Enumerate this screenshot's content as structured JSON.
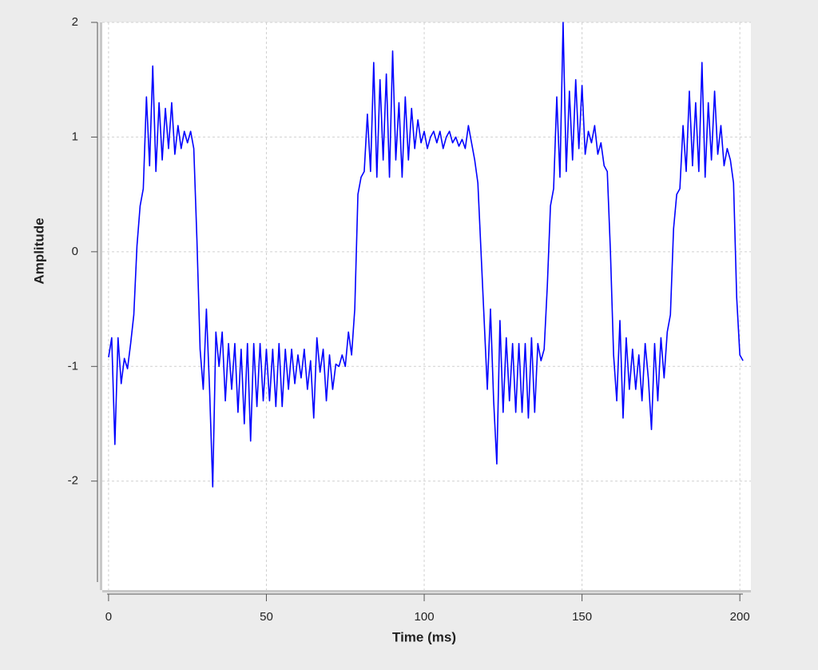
{
  "chart_data": {
    "type": "line",
    "xlabel": "Time (ms)",
    "ylabel": "Amplitude",
    "x": [
      0,
      1,
      2,
      3,
      4,
      5,
      6,
      7,
      8,
      9,
      10,
      11,
      12,
      13,
      14,
      15,
      16,
      17,
      18,
      19,
      20,
      21,
      22,
      23,
      24,
      25,
      26,
      27,
      28,
      29,
      30,
      31,
      32,
      33,
      34,
      35,
      36,
      37,
      38,
      39,
      40,
      41,
      42,
      43,
      44,
      45,
      46,
      47,
      48,
      49,
      50,
      51,
      52,
      53,
      54,
      55,
      56,
      57,
      58,
      59,
      60,
      61,
      62,
      63,
      64,
      65,
      66,
      67,
      68,
      69,
      70,
      71,
      72,
      73,
      74,
      75,
      76,
      77,
      78,
      79,
      80,
      81,
      82,
      83,
      84,
      85,
      86,
      87,
      88,
      89,
      90,
      91,
      92,
      93,
      94,
      95,
      96,
      97,
      98,
      99,
      100,
      101,
      102,
      103,
      104,
      105,
      106,
      107,
      108,
      109,
      110,
      111,
      112,
      113,
      114,
      115,
      116,
      117,
      118,
      119,
      120,
      121,
      122,
      123,
      124,
      125,
      126,
      127,
      128,
      129,
      130,
      131,
      132,
      133,
      134,
      135,
      136,
      137,
      138,
      139,
      140,
      141,
      142,
      143,
      144,
      145,
      146,
      147,
      148,
      149,
      150,
      151,
      152,
      153,
      154,
      155,
      156,
      157,
      158,
      159,
      160,
      161,
      162,
      163,
      164,
      165,
      166,
      167,
      168,
      169,
      170,
      171,
      172,
      173,
      174,
      175,
      176,
      177,
      178,
      179,
      180,
      181,
      182,
      183,
      184,
      185,
      186,
      187,
      188,
      189,
      190,
      191,
      192,
      193,
      194,
      195,
      196,
      197,
      198,
      199,
      200,
      201
    ],
    "series": [
      {
        "color": "#0000ff",
        "values": [
          -0.92,
          -0.75,
          -1.68,
          -0.75,
          -1.15,
          -0.93,
          -1.02,
          -0.8,
          -0.55,
          0.05,
          0.4,
          0.55,
          1.35,
          0.75,
          1.62,
          0.7,
          1.3,
          0.8,
          1.25,
          0.9,
          1.3,
          0.85,
          1.1,
          0.9,
          1.05,
          0.95,
          1.05,
          0.9,
          0.1,
          -0.85,
          -1.2,
          -0.5,
          -1.2,
          -2.05,
          -0.7,
          -1.0,
          -0.7,
          -1.3,
          -0.8,
          -1.2,
          -0.8,
          -1.4,
          -0.85,
          -1.5,
          -0.8,
          -1.65,
          -0.8,
          -1.35,
          -0.8,
          -1.3,
          -0.85,
          -1.3,
          -0.85,
          -1.35,
          -0.8,
          -1.35,
          -0.85,
          -1.2,
          -0.85,
          -1.15,
          -0.9,
          -1.1,
          -0.85,
          -1.2,
          -0.95,
          -1.45,
          -0.75,
          -1.05,
          -0.85,
          -1.3,
          -0.9,
          -1.2,
          -0.98,
          -1.0,
          -0.9,
          -1.0,
          -0.7,
          -0.9,
          -0.5,
          0.5,
          0.65,
          0.7,
          1.2,
          0.7,
          1.65,
          0.65,
          1.5,
          0.8,
          1.55,
          0.65,
          1.75,
          0.8,
          1.3,
          0.65,
          1.35,
          0.8,
          1.25,
          0.9,
          1.15,
          0.95,
          1.05,
          0.9,
          1.0,
          1.05,
          0.95,
          1.05,
          0.9,
          1.0,
          1.05,
          0.95,
          1.0,
          0.92,
          0.98,
          0.9,
          1.1,
          0.95,
          0.8,
          0.6,
          0.0,
          -0.6,
          -1.2,
          -0.5,
          -1.3,
          -1.85,
          -0.6,
          -1.4,
          -0.75,
          -1.3,
          -0.8,
          -1.4,
          -0.8,
          -1.4,
          -0.8,
          -1.45,
          -0.75,
          -1.4,
          -0.8,
          -0.95,
          -0.85,
          -0.3,
          0.4,
          0.55,
          1.35,
          0.65,
          2.0,
          0.7,
          1.4,
          0.8,
          1.5,
          0.9,
          1.45,
          0.85,
          1.05,
          0.95,
          1.1,
          0.85,
          0.95,
          0.75,
          0.7,
          0.0,
          -0.9,
          -1.3,
          -0.6,
          -1.45,
          -0.75,
          -1.2,
          -0.85,
          -1.2,
          -0.9,
          -1.3,
          -0.8,
          -1.1,
          -1.55,
          -0.8,
          -1.3,
          -0.75,
          -1.1,
          -0.7,
          -0.55,
          0.2,
          0.5,
          0.55,
          1.1,
          0.7,
          1.4,
          0.75,
          1.3,
          0.7,
          1.65,
          0.65,
          1.3,
          0.8,
          1.4,
          0.85,
          1.1,
          0.75,
          0.9,
          0.8,
          0.6,
          -0.4,
          -0.9,
          -0.95
        ]
      }
    ],
    "xlim": [
      -2,
      203.5
    ],
    "ylim": [
      -2.95,
      2
    ],
    "xticks": [
      0,
      50,
      100,
      150,
      200
    ],
    "yticks": [
      -2,
      -1,
      0,
      1,
      2
    ],
    "grid": true
  }
}
